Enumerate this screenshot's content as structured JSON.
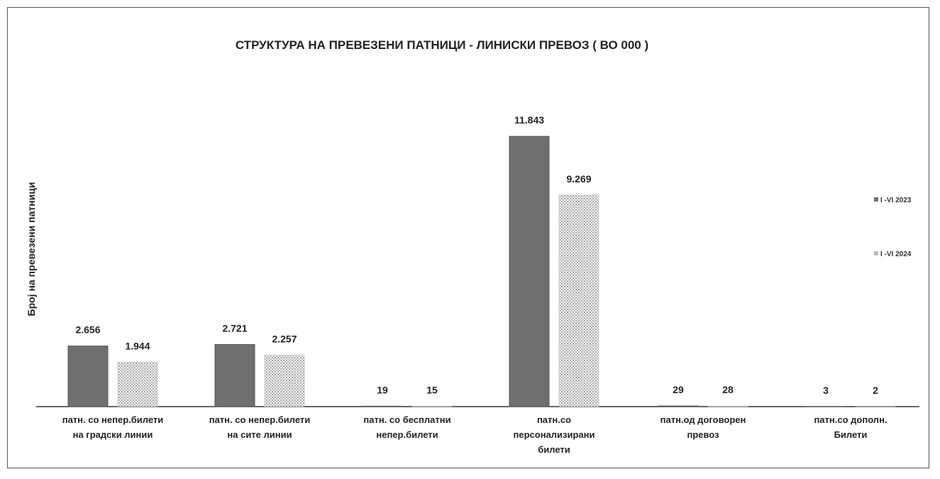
{
  "chart_data": {
    "type": "bar",
    "title": "СТРУКТУРА НА ПРЕВЕЗЕНИ ПАТНИЦИ - ЛИНИСКИ ПРЕВОЗ ( ВО 000 )",
    "ylabel": "Број на превезени патници",
    "categories": [
      [
        "патн. со непер.билети",
        "на градски линии"
      ],
      [
        "патн. со непер.билети",
        "на сите линии"
      ],
      [
        "патн. со бесплатни",
        "непер.билети"
      ],
      [
        "патн.со",
        "персонализирани",
        "билети"
      ],
      [
        "патн.од договорен",
        "превоз"
      ],
      [
        "патн.со дополн.",
        "Билети"
      ]
    ],
    "series": [
      {
        "name": "I -VI 2023",
        "values": [
          2656,
          2721,
          19,
          11843,
          29,
          3
        ],
        "labels": [
          "2.656",
          "2.721",
          "19",
          "11.843",
          "29",
          "3"
        ],
        "color": "#707070"
      },
      {
        "name": "I -VI 2024",
        "values": [
          1944,
          2257,
          15,
          9269,
          28,
          2
        ],
        "labels": [
          "1.944",
          "2.257",
          "15",
          "9.269",
          "28",
          "2"
        ],
        "color": "#d8d8d8"
      }
    ],
    "ylim": [
      0,
      12500
    ],
    "grid": false,
    "legend_position": "right"
  }
}
